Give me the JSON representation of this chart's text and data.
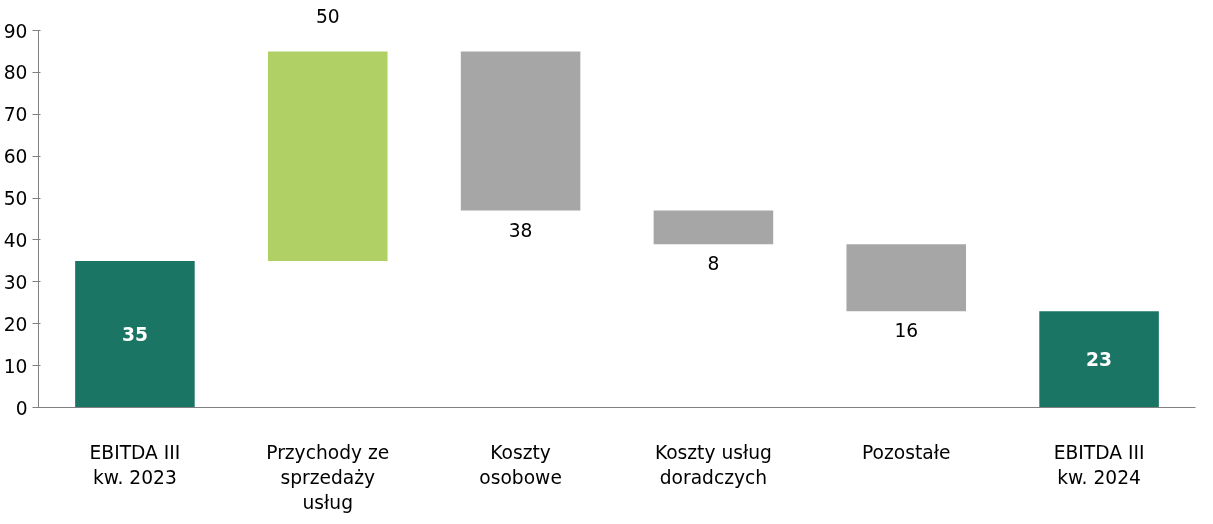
{
  "chart_data": {
    "type": "bar",
    "categories": [
      "EBITDA III kw. 2023",
      "Przychody ze sprzedaży usług",
      "Koszty osobowe",
      "Koszty usług doradczych",
      "Pozostałe",
      "EBITDA III kw. 2024"
    ],
    "values": [
      35,
      50,
      -38,
      -8,
      -16,
      23
    ],
    "base": [
      0,
      35,
      85,
      47,
      39,
      0
    ],
    "value_labels": [
      "35",
      "50",
      "38",
      "8",
      "16",
      "23"
    ],
    "colors": [
      "#1b7565",
      "#b0cf64",
      "#a6a6a6",
      "#a6a6a6",
      "#a6a6a6",
      "#1b7565"
    ],
    "ylim": [
      0,
      90
    ],
    "yticks": [
      0,
      10,
      20,
      30,
      40,
      50,
      60,
      70,
      80,
      90
    ],
    "grid": false
  }
}
